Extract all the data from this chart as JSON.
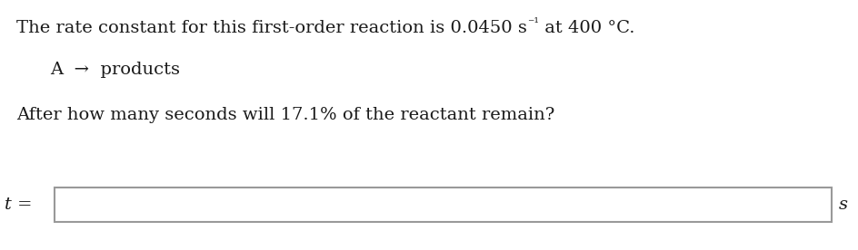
{
  "line1": "The rate constant for this first-order reaction is 0.0450 s",
  "line1_super": "⁻¹",
  "line1_end": " at 400 °C.",
  "line2": "A  →  products",
  "line3": "After how many seconds will 17.1% of the reactant remain?",
  "label_t": "t =",
  "label_s": "s",
  "bg_color": "#ffffff",
  "text_color": "#1a1a1a",
  "box_edge_color": "#999999",
  "font_size": 14,
  "font_size_super": 10,
  "font_family": "serif"
}
